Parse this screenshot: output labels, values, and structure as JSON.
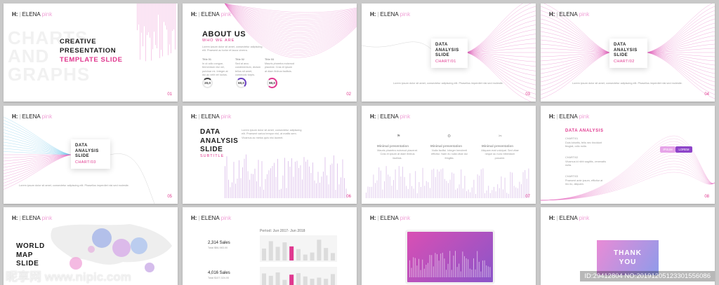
{
  "brand": {
    "letter": "H:",
    "name": "ELENA",
    "tag": "pink"
  },
  "colors": {
    "accent": "#e0388f",
    "wave": "#e46bc0",
    "wave_blue": "#6ec6ea",
    "purple": "#9b59d0"
  },
  "slides": {
    "s1": {
      "watermark": "CHARTS\nAND\nGRAPHS",
      "l1": "CREATIVE",
      "l2": "PRESENTATION",
      "l3": "TEMPLATE SLIDE",
      "page": "01"
    },
    "s2": {
      "title": "ABOUT US",
      "subtitle": "WHO WE ARE",
      "intro": "Lorem ipsum dolor sit amet, consectetur adipiscing elit. Praesent ac tortor et lacus viverra.",
      "cols": [
        {
          "title": "Title 01",
          "body": "In ut odio congue, fermentum nisl vel, pulvinar mi. Integer at dui ac velit vel luctus.",
          "gauge": "20,0"
        },
        {
          "title": "Title 02",
          "body": "Sed at arcu condimentum, dictum tellus sit amet, commodo turpis.",
          "gauge": "60,0"
        },
        {
          "title": "Title 03",
          "body": "Mauris pharetra euismod placerat. Cras et ipsum at diam finibus facilisis.",
          "gauge": "90,0"
        }
      ],
      "page": "02"
    },
    "s3": {
      "t": "DATA\nANALYSIS\nSLIDE",
      "s": "CHART/01",
      "note": "Lorem ipsum dolor sit amet, consectetur adipiscing elit. Phasellus imperdiet nisi sed molestie.",
      "page": "03"
    },
    "s4": {
      "t": "DATA\nANALYSIS\nSLIDE",
      "s": "CHART/02",
      "page": "04"
    },
    "s5": {
      "t": "DATA\nANALYSIS\nSLIDE",
      "s": "CHART/03",
      "note": "Lorem ipsum dolor sit amet, consectetur adipiscing elit. Phasellus imperdiet nisi sed molestie.",
      "page": "05"
    },
    "s6": {
      "t": "DATA\nANALYSIS\nSLIDE",
      "s": "SUBTITLE",
      "body": "Lorem ipsum dolor sit amet, consectetur adipiscing elit. Praesent varius tempor nisl, at mattis sem. Vivamus ac metus quis nisi laoreet.",
      "page": "06"
    },
    "s7": {
      "cols": [
        {
          "title": "Minimal presentation",
          "body": "Mauris pharetra euismod placerat. Cras et ipsum at diam finibus facilisis."
        },
        {
          "title": "Minimal presentation",
          "body": "Nulla facilisi. Integer hendrerit efficitur. Nam eu nulla vitae dui fringilla."
        },
        {
          "title": "Minimal presentation",
          "body": "Aliquam erat volutpat. Sed vitae neque ac nunc bibendum posuere."
        }
      ],
      "page": "07"
    },
    "s8": {
      "title": "DATA ANALYSIS",
      "items": [
        {
          "h": "CHART/01",
          "b": "Duis lobortis, felis nec tincidunt feugiat, odio nulla."
        },
        {
          "h": "CHART/02",
          "b": "Vivamus id nibh sagittis, venenatis nulla."
        },
        {
          "h": "CHART/03",
          "b": "Praesent ante ipsum, efficitur at leo eu, aliquam."
        }
      ],
      "pill1": "IPSUM",
      "pill2": "LOREM",
      "page": "08"
    },
    "s9": {
      "t": "WORLD\nMAP\nSLIDE"
    },
    "s10": {
      "period": "Period: Jun 2017- Jun 2018",
      "stat1": "2,314 Sales",
      "stat1_sub": "Total $56,983.00",
      "stat2": "4,016 Sales",
      "stat2_sub": "Total $107,024.00"
    },
    "s12": {
      "text": "THANK\nYOU"
    }
  },
  "watermarks": {
    "site": "昵享网 www.nipic.com",
    "id": "ID:29412804 NO:20191205123301556086"
  }
}
